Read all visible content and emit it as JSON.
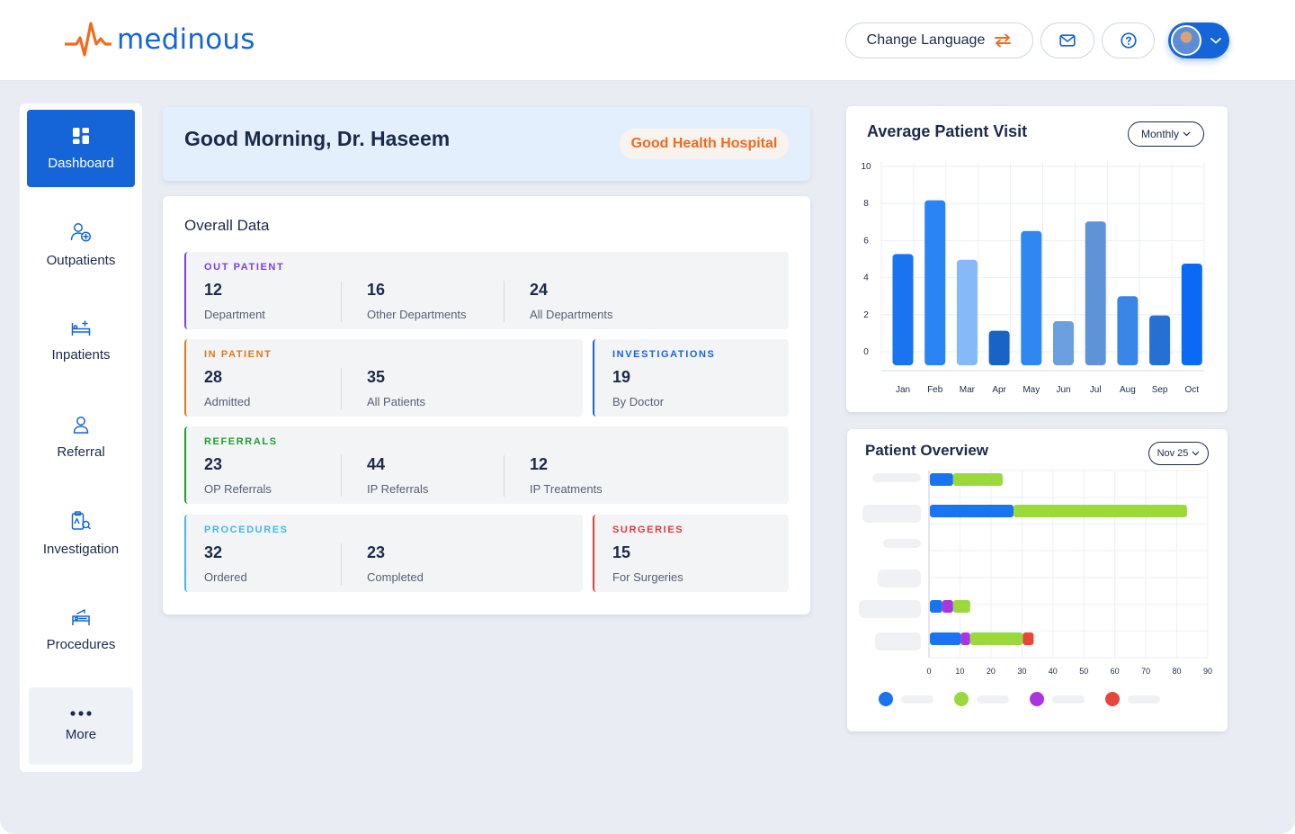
{
  "brand": {
    "name": "medinous",
    "accent": "#1565d8",
    "pulse_color": "#f26b1d"
  },
  "header": {
    "language_label": "Change Language",
    "language_icon": "swap-arrows-icon",
    "mail_icon": "mail-icon",
    "help_icon": "question-circle-icon",
    "profile_icon": "chevron-down-icon"
  },
  "sidebar": {
    "items": [
      {
        "label": "Dashboard",
        "icon": "grid-icon",
        "active": true
      },
      {
        "label": "Outpatients",
        "icon": "user-plus-icon"
      },
      {
        "label": "Inpatients",
        "icon": "bed-icon"
      },
      {
        "label": "Referral",
        "icon": "person-icon"
      },
      {
        "label": "Investigation",
        "icon": "clipboard-icon"
      },
      {
        "label": "Procedures",
        "icon": "procedure-bed-icon"
      },
      {
        "label": "More",
        "icon": "dots-icon"
      }
    ]
  },
  "greeting": {
    "title": "Good Morning, Dr. Haseem",
    "hospital": "Good Health Hospital"
  },
  "overall": {
    "title": "Overall Data",
    "out_patient": {
      "heading": "OUT PATIENT",
      "color": "#7b3fe4",
      "stats": [
        {
          "value": "12",
          "label": "Department"
        },
        {
          "value": "16",
          "label": "Other Departments"
        },
        {
          "value": "24",
          "label": "All Departments"
        }
      ]
    },
    "in_patient": {
      "heading": "IN PATIENT",
      "color": "#e07a12",
      "stats": [
        {
          "value": "28",
          "label": "Admitted"
        },
        {
          "value": "35",
          "label": "All Patients"
        }
      ]
    },
    "investigations": {
      "heading": "INVESTIGATIONS",
      "color": "#1565d8",
      "stats": [
        {
          "value": "19",
          "label": "By Doctor"
        }
      ]
    },
    "referrals": {
      "heading": "REFERRALS",
      "color": "#1f9d2e",
      "stats": [
        {
          "value": "23",
          "label": "OP Referrals"
        },
        {
          "value": "44",
          "label": "IP Referrals"
        },
        {
          "value": "12",
          "label": "IP Treatments"
        }
      ]
    },
    "procedures": {
      "heading": "PROCEDURES",
      "color": "#41b8ee",
      "stats": [
        {
          "value": "32",
          "label": "Ordered"
        },
        {
          "value": "23",
          "label": "Completed"
        }
      ]
    },
    "surgeries": {
      "heading": "SURGERIES",
      "color": "#e03c3c",
      "stats": [
        {
          "value": "15",
          "label": "For Surgeries"
        }
      ]
    }
  },
  "avg_visit": {
    "title": "Average Patient Visit",
    "period": "Monthly",
    "chart_data": {
      "type": "bar",
      "categories": [
        "Jan",
        "Feb",
        "Mar",
        "Apr",
        "May",
        "Jun",
        "Jul",
        "Aug",
        "Sep",
        "Oct"
      ],
      "values": [
        5.8,
        8.6,
        5.5,
        1.8,
        7.0,
        2.3,
        7.5,
        3.6,
        2.6,
        5.3
      ],
      "y_ticks": [
        "0",
        "2",
        "4",
        "6",
        "8",
        "10"
      ],
      "ylim": [
        0,
        10
      ],
      "grid": true,
      "bar_colors": [
        "#1a73f0",
        "#2b84f3",
        "#85b9f7",
        "#1a63c6",
        "#2f87f2",
        "#6b9fe0",
        "#5f93d8",
        "#3a86e6",
        "#2670d4",
        "#0a6af5"
      ]
    }
  },
  "overview": {
    "title": "Patient Overview",
    "period": "Nov 25",
    "chart_data": {
      "type": "bar",
      "orientation": "horizontal",
      "stacked": true,
      "x_ticks": [
        "0",
        "10",
        "20",
        "30",
        "40",
        "50",
        "60",
        "70",
        "80",
        "90"
      ],
      "xlim": [
        0,
        90
      ],
      "grid": true,
      "series": [
        {
          "color": "#1a73f0",
          "values": [
            7.5,
            27,
            0,
            0,
            4,
            10
          ]
        },
        {
          "color": "#a934e0",
          "values": [
            0,
            0,
            0,
            0,
            3.5,
            3
          ]
        },
        {
          "color": "#9ad83c",
          "values": [
            16,
            56,
            0,
            0,
            5.5,
            17
          ]
        },
        {
          "color": "#e8453c",
          "values": [
            0,
            0,
            0,
            0,
            0,
            3.5
          ]
        }
      ],
      "legend": [
        "#1a73f0",
        "#9ad83c",
        "#a934e0",
        "#e8453c"
      ]
    }
  }
}
